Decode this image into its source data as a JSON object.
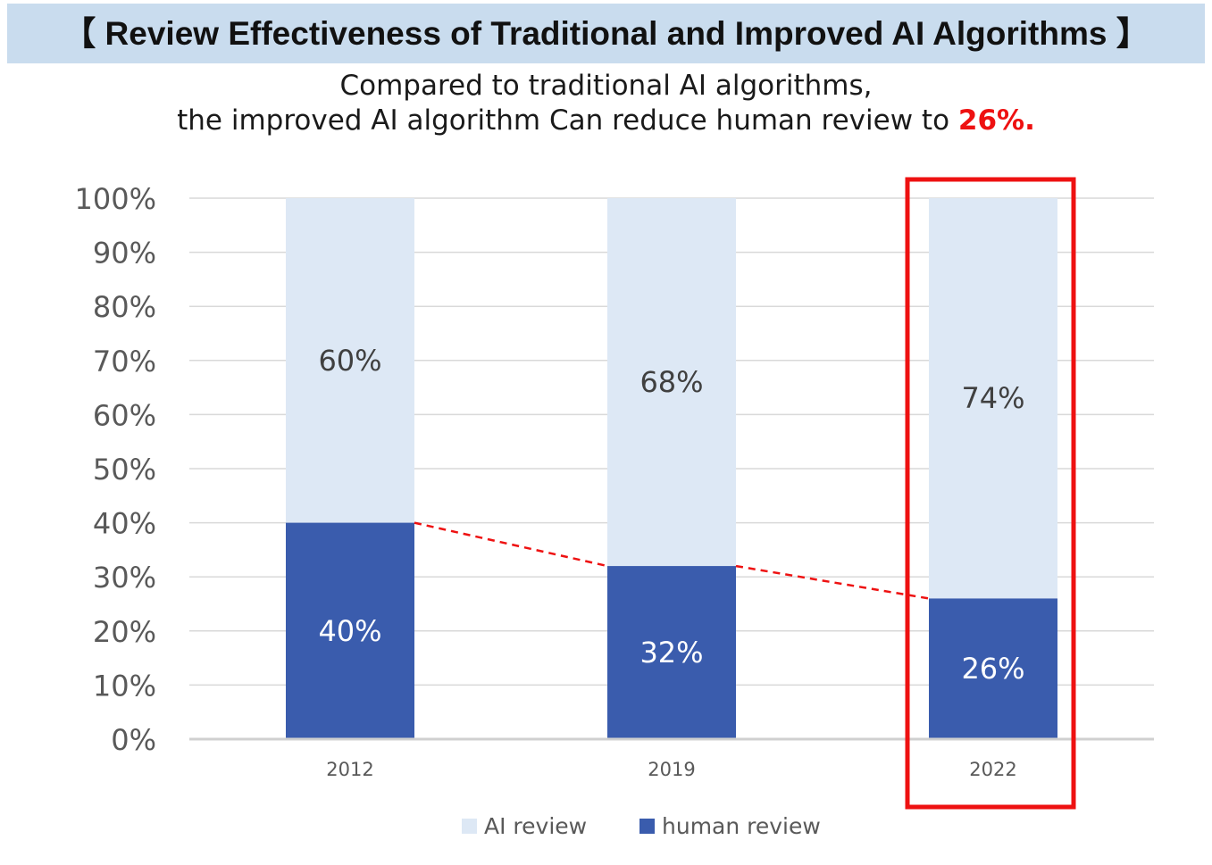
{
  "header": {
    "title": "【 Review Effectiveness of Traditional and Improved AI Algorithms 】",
    "subtitle_line1": "Compared to traditional AI algorithms,",
    "subtitle_line2_prefix": "the improved AI algorithm Can reduce human review to ",
    "subtitle_highlight": "26%."
  },
  "colors": {
    "ai_review": "#dde8f5",
    "human_review": "#3a5cad",
    "highlight": "#ee1111",
    "grid": "#d9d9d9",
    "title_bar": "#c9dcee"
  },
  "chart_data": {
    "type": "bar",
    "stacked": true,
    "categories": [
      "2012",
      "2019",
      "2022"
    ],
    "series": [
      {
        "name": "human review",
        "values": [
          40,
          32,
          26
        ],
        "labels": [
          "40%",
          "32%",
          "26%"
        ],
        "color": "#3a5cad"
      },
      {
        "name": "AI review",
        "values": [
          60,
          68,
          74
        ],
        "labels": [
          "60%",
          "68%",
          "74%"
        ],
        "color": "#dde8f5"
      }
    ],
    "y_ticks": [
      "0%",
      "10%",
      "20%",
      "30%",
      "40%",
      "50%",
      "60%",
      "70%",
      "80%",
      "90%",
      "100%"
    ],
    "ylim": [
      0,
      100
    ],
    "grid": true,
    "legend_position": "bottom",
    "highlighted_category": "2022",
    "trend_line": {
      "series": "human review",
      "style": "dashed",
      "color": "#ee1111"
    }
  },
  "legend": {
    "items": [
      {
        "label": "AI review",
        "color": "#dde8f5"
      },
      {
        "label": "human review",
        "color": "#3a5cad"
      }
    ]
  }
}
